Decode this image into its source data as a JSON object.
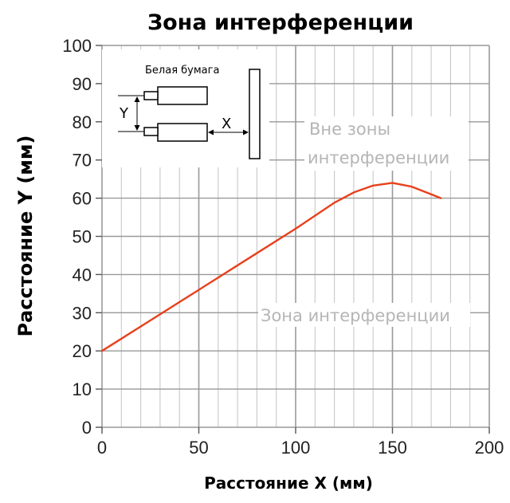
{
  "chart_data": {
    "type": "line",
    "title": "Зона интерференции",
    "xlabel": "Расстояние X (мм)",
    "ylabel": "Расстояние Y (мм)",
    "xlim": [
      0,
      200
    ],
    "ylim": [
      0,
      100
    ],
    "x_ticks": [
      0,
      50,
      100,
      150,
      200
    ],
    "y_ticks": [
      0,
      10,
      20,
      30,
      40,
      50,
      60,
      70,
      80,
      90,
      100
    ],
    "grid": true,
    "series": [
      {
        "color": "#e8401c",
        "points": [
          [
            0,
            20
          ],
          [
            25,
            28
          ],
          [
            50,
            36
          ],
          [
            75,
            44
          ],
          [
            100,
            52
          ],
          [
            120,
            58.8
          ],
          [
            130,
            61.5
          ],
          [
            140,
            63.3
          ],
          [
            150,
            64
          ],
          [
            160,
            63
          ],
          [
            170,
            61
          ],
          [
            175,
            60
          ]
        ]
      }
    ],
    "annotations": {
      "outside_line1": "Вне зоны",
      "outside_line2": "интерференции",
      "inside": "Зона интерференции"
    },
    "inset": {
      "paper_label": "Белая бумага",
      "y_letter": "Y",
      "x_letter": "X"
    }
  }
}
